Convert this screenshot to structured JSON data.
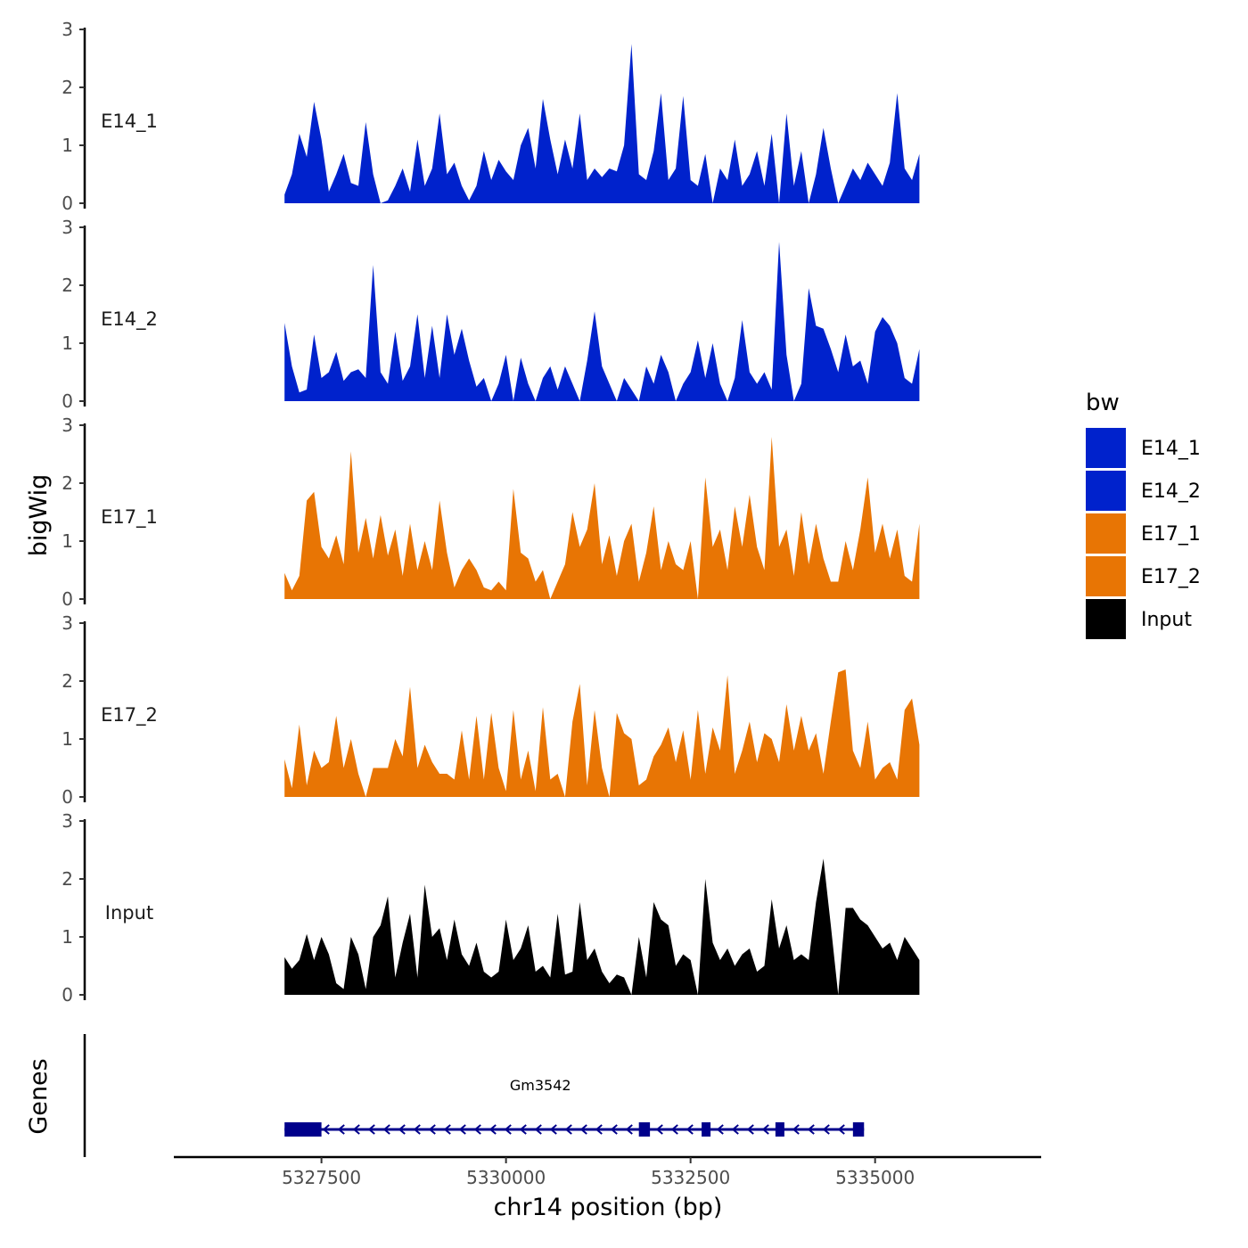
{
  "chart_data": {
    "type": "area",
    "chromosome": "chr14",
    "xlabel": "chr14 position (bp)",
    "ylabel": "bigWig",
    "genes_label": "Genes",
    "x_range": [
      5327000,
      5335600
    ],
    "plot_xlim": [
      5325500,
      5337250
    ],
    "x_ticks": [
      5327500,
      5330000,
      5332500,
      5335000
    ],
    "x_tick_labels": [
      "5327500",
      "5330000",
      "5332500",
      "5335000"
    ],
    "ylim": [
      0,
      3
    ],
    "y_ticks": [
      0,
      1,
      2,
      3
    ],
    "y_tick_labels": [
      "0",
      "1",
      "2",
      "3"
    ],
    "legend": {
      "title": "bw",
      "entries": [
        {
          "label": "E14_1",
          "color": "#0022cc"
        },
        {
          "label": "E14_2",
          "color": "#0022cc"
        },
        {
          "label": "E17_1",
          "color": "#e87504"
        },
        {
          "label": "E17_2",
          "color": "#e87504"
        },
        {
          "label": "Input",
          "color": "#000000"
        }
      ]
    },
    "series": [
      {
        "name": "E14_1",
        "color": "#0022cc",
        "x": [
          5327000,
          5327100,
          5327200,
          5327300,
          5327400,
          5327500,
          5327600,
          5327700,
          5327800,
          5327900,
          5328000,
          5328100,
          5328200,
          5328300,
          5328400,
          5328500,
          5328600,
          5328700,
          5328800,
          5328900,
          5329000,
          5329100,
          5329200,
          5329300,
          5329400,
          5329500,
          5329600,
          5329700,
          5329800,
          5329900,
          5330000,
          5330100,
          5330200,
          5330300,
          5330400,
          5330500,
          5330600,
          5330700,
          5330800,
          5330900,
          5331000,
          5331100,
          5331200,
          5331300,
          5331400,
          5331500,
          5331600,
          5331700,
          5331800,
          5331900,
          5332000,
          5332100,
          5332200,
          5332300,
          5332400,
          5332500,
          5332600,
          5332700,
          5332800,
          5332900,
          5333000,
          5333100,
          5333200,
          5333300,
          5333400,
          5333500,
          5333600,
          5333700,
          5333800,
          5333900,
          5334000,
          5334100,
          5334200,
          5334300,
          5334400,
          5334500,
          5334600,
          5334700,
          5334800,
          5334900,
          5335000,
          5335100,
          5335200,
          5335300,
          5335400,
          5335500,
          5335600
        ],
        "values": [
          0.15,
          0.5,
          1.2,
          0.8,
          1.75,
          1.1,
          0.2,
          0.5,
          0.85,
          0.35,
          0.3,
          1.4,
          0.5,
          0.0,
          0.05,
          0.3,
          0.6,
          0.2,
          1.1,
          0.3,
          0.6,
          1.55,
          0.5,
          0.7,
          0.3,
          0.05,
          0.3,
          0.9,
          0.4,
          0.75,
          0.55,
          0.4,
          1.0,
          1.3,
          0.6,
          1.8,
          1.1,
          0.5,
          1.1,
          0.6,
          1.55,
          0.4,
          0.6,
          0.45,
          0.6,
          0.55,
          1.0,
          2.75,
          0.5,
          0.4,
          0.9,
          1.9,
          0.4,
          0.6,
          1.85,
          0.4,
          0.3,
          0.85,
          0.0,
          0.6,
          0.4,
          1.1,
          0.3,
          0.5,
          0.9,
          0.3,
          1.2,
          0.0,
          1.55,
          0.3,
          0.9,
          0.0,
          0.5,
          1.3,
          0.6,
          0.0,
          0.3,
          0.6,
          0.4,
          0.7,
          0.5,
          0.3,
          0.7,
          1.9,
          0.6,
          0.4,
          0.85
        ]
      },
      {
        "name": "E14_2",
        "color": "#0022cc",
        "x": [
          5327000,
          5327100,
          5327200,
          5327300,
          5327400,
          5327500,
          5327600,
          5327700,
          5327800,
          5327900,
          5328000,
          5328100,
          5328200,
          5328300,
          5328400,
          5328500,
          5328600,
          5328700,
          5328800,
          5328900,
          5329000,
          5329100,
          5329200,
          5329300,
          5329400,
          5329500,
          5329600,
          5329700,
          5329800,
          5329900,
          5330000,
          5330100,
          5330200,
          5330300,
          5330400,
          5330500,
          5330600,
          5330700,
          5330800,
          5330900,
          5331000,
          5331100,
          5331200,
          5331300,
          5331400,
          5331500,
          5331600,
          5331700,
          5331800,
          5331900,
          5332000,
          5332100,
          5332200,
          5332300,
          5332400,
          5332500,
          5332600,
          5332700,
          5332800,
          5332900,
          5333000,
          5333100,
          5333200,
          5333300,
          5333400,
          5333500,
          5333600,
          5333700,
          5333800,
          5333900,
          5334000,
          5334100,
          5334200,
          5334300,
          5334400,
          5334500,
          5334600,
          5334700,
          5334800,
          5334900,
          5335000,
          5335100,
          5335200,
          5335300,
          5335400,
          5335500,
          5335600
        ],
        "values": [
          1.35,
          0.6,
          0.15,
          0.2,
          1.15,
          0.4,
          0.5,
          0.85,
          0.35,
          0.5,
          0.55,
          0.4,
          2.35,
          0.5,
          0.3,
          1.2,
          0.35,
          0.6,
          1.5,
          0.4,
          1.3,
          0.4,
          1.5,
          0.8,
          1.25,
          0.7,
          0.25,
          0.4,
          0.0,
          0.3,
          0.8,
          0.0,
          0.75,
          0.3,
          0.0,
          0.4,
          0.6,
          0.2,
          0.6,
          0.3,
          0.0,
          0.7,
          1.55,
          0.6,
          0.3,
          0.0,
          0.4,
          0.2,
          0.0,
          0.6,
          0.3,
          0.8,
          0.5,
          0.0,
          0.3,
          0.5,
          1.05,
          0.4,
          1.0,
          0.3,
          0.0,
          0.4,
          1.4,
          0.5,
          0.3,
          0.5,
          0.2,
          2.75,
          0.8,
          0.0,
          0.3,
          1.95,
          1.3,
          1.25,
          0.9,
          0.5,
          1.15,
          0.6,
          0.7,
          0.3,
          1.2,
          1.45,
          1.3,
          1.0,
          0.4,
          0.3,
          0.9
        ]
      },
      {
        "name": "E17_1",
        "color": "#e87504",
        "x": [
          5327000,
          5327100,
          5327200,
          5327300,
          5327400,
          5327500,
          5327600,
          5327700,
          5327800,
          5327900,
          5328000,
          5328100,
          5328200,
          5328300,
          5328400,
          5328500,
          5328600,
          5328700,
          5328800,
          5328900,
          5329000,
          5329100,
          5329200,
          5329300,
          5329400,
          5329500,
          5329600,
          5329700,
          5329800,
          5329900,
          5330000,
          5330100,
          5330200,
          5330300,
          5330400,
          5330500,
          5330600,
          5330700,
          5330800,
          5330900,
          5331000,
          5331100,
          5331200,
          5331300,
          5331400,
          5331500,
          5331600,
          5331700,
          5331800,
          5331900,
          5332000,
          5332100,
          5332200,
          5332300,
          5332400,
          5332500,
          5332600,
          5332700,
          5332800,
          5332900,
          5333000,
          5333100,
          5333200,
          5333300,
          5333400,
          5333500,
          5333600,
          5333700,
          5333800,
          5333900,
          5334000,
          5334100,
          5334200,
          5334300,
          5334400,
          5334500,
          5334600,
          5334700,
          5334800,
          5334900,
          5335000,
          5335100,
          5335200,
          5335300,
          5335400,
          5335500,
          5335600
        ],
        "values": [
          0.45,
          0.15,
          0.4,
          1.7,
          1.85,
          0.9,
          0.7,
          1.1,
          0.6,
          2.55,
          0.8,
          1.4,
          0.7,
          1.45,
          0.75,
          1.2,
          0.4,
          1.3,
          0.5,
          1.0,
          0.5,
          1.7,
          0.8,
          0.2,
          0.5,
          0.7,
          0.5,
          0.2,
          0.15,
          0.3,
          0.15,
          1.9,
          0.8,
          0.7,
          0.3,
          0.5,
          0.0,
          0.3,
          0.6,
          1.5,
          0.9,
          1.2,
          2.0,
          0.6,
          1.1,
          0.4,
          1.0,
          1.3,
          0.3,
          0.8,
          1.6,
          0.5,
          1.0,
          0.6,
          0.5,
          1.0,
          0.0,
          2.1,
          0.9,
          1.2,
          0.5,
          1.6,
          0.9,
          1.8,
          0.9,
          0.5,
          2.8,
          0.9,
          1.2,
          0.4,
          1.5,
          0.6,
          1.3,
          0.7,
          0.3,
          0.3,
          1.0,
          0.5,
          1.2,
          2.1,
          0.8,
          1.3,
          0.7,
          1.2,
          0.4,
          0.3,
          1.3
        ]
      },
      {
        "name": "E17_2",
        "color": "#e87504",
        "x": [
          5327000,
          5327100,
          5327200,
          5327300,
          5327400,
          5327500,
          5327600,
          5327700,
          5327800,
          5327900,
          5328000,
          5328100,
          5328200,
          5328300,
          5328400,
          5328500,
          5328600,
          5328700,
          5328800,
          5328900,
          5329000,
          5329100,
          5329200,
          5329300,
          5329400,
          5329500,
          5329600,
          5329700,
          5329800,
          5329900,
          5330000,
          5330100,
          5330200,
          5330300,
          5330400,
          5330500,
          5330600,
          5330700,
          5330800,
          5330900,
          5331000,
          5331100,
          5331200,
          5331300,
          5331400,
          5331500,
          5331600,
          5331700,
          5331800,
          5331900,
          5332000,
          5332100,
          5332200,
          5332300,
          5332400,
          5332500,
          5332600,
          5332700,
          5332800,
          5332900,
          5333000,
          5333100,
          5333200,
          5333300,
          5333400,
          5333500,
          5333600,
          5333700,
          5333800,
          5333900,
          5334000,
          5334100,
          5334200,
          5334300,
          5334400,
          5334500,
          5334600,
          5334700,
          5334800,
          5334900,
          5335000,
          5335100,
          5335200,
          5335300,
          5335400,
          5335500,
          5335600
        ],
        "values": [
          0.65,
          0.15,
          1.25,
          0.2,
          0.8,
          0.5,
          0.6,
          1.4,
          0.5,
          1.0,
          0.4,
          0.0,
          0.5,
          0.5,
          0.5,
          1.0,
          0.7,
          1.9,
          0.5,
          0.9,
          0.6,
          0.4,
          0.4,
          0.3,
          1.15,
          0.3,
          1.4,
          0.3,
          1.45,
          0.5,
          0.1,
          1.5,
          0.3,
          0.8,
          0.1,
          1.55,
          0.3,
          0.4,
          0.0,
          1.3,
          1.95,
          0.2,
          1.5,
          0.5,
          0.0,
          1.45,
          1.1,
          1.0,
          0.2,
          0.3,
          0.7,
          0.9,
          1.2,
          0.6,
          1.15,
          0.3,
          1.5,
          0.4,
          1.2,
          0.8,
          2.1,
          0.4,
          0.8,
          1.3,
          0.6,
          1.1,
          1.0,
          0.6,
          1.6,
          0.8,
          1.4,
          0.8,
          1.1,
          0.4,
          1.3,
          2.15,
          2.2,
          0.8,
          0.5,
          1.3,
          0.3,
          0.5,
          0.6,
          0.3,
          1.5,
          1.7,
          0.9
        ]
      },
      {
        "name": "Input",
        "color": "#000000",
        "x": [
          5327000,
          5327100,
          5327200,
          5327300,
          5327400,
          5327500,
          5327600,
          5327700,
          5327800,
          5327900,
          5328000,
          5328100,
          5328200,
          5328300,
          5328400,
          5328500,
          5328600,
          5328700,
          5328800,
          5328900,
          5329000,
          5329100,
          5329200,
          5329300,
          5329400,
          5329500,
          5329600,
          5329700,
          5329800,
          5329900,
          5330000,
          5330100,
          5330200,
          5330300,
          5330400,
          5330500,
          5330600,
          5330700,
          5330800,
          5330900,
          5331000,
          5331100,
          5331200,
          5331300,
          5331400,
          5331500,
          5331600,
          5331700,
          5331800,
          5331900,
          5332000,
          5332100,
          5332200,
          5332300,
          5332400,
          5332500,
          5332600,
          5332700,
          5332800,
          5332900,
          5333000,
          5333100,
          5333200,
          5333300,
          5333400,
          5333500,
          5333600,
          5333700,
          5333800,
          5333900,
          5334000,
          5334100,
          5334200,
          5334300,
          5334400,
          5334500,
          5334600,
          5334700,
          5334800,
          5334900,
          5335000,
          5335100,
          5335200,
          5335300,
          5335400,
          5335500,
          5335600
        ],
        "values": [
          0.65,
          0.45,
          0.6,
          1.05,
          0.6,
          1.0,
          0.7,
          0.2,
          0.1,
          1.0,
          0.7,
          0.1,
          1.0,
          1.2,
          1.7,
          0.3,
          0.9,
          1.4,
          0.3,
          1.9,
          1.0,
          1.15,
          0.6,
          1.3,
          0.7,
          0.5,
          0.9,
          0.4,
          0.3,
          0.4,
          1.3,
          0.6,
          0.8,
          1.2,
          0.4,
          0.5,
          0.3,
          1.4,
          0.35,
          0.4,
          1.6,
          0.6,
          0.8,
          0.4,
          0.2,
          0.35,
          0.3,
          0.0,
          1.0,
          0.3,
          1.6,
          1.3,
          1.2,
          0.5,
          0.7,
          0.6,
          0.0,
          2.0,
          0.9,
          0.6,
          0.8,
          0.5,
          0.7,
          0.8,
          0.4,
          0.5,
          1.65,
          0.8,
          1.2,
          0.6,
          0.7,
          0.6,
          1.6,
          2.35,
          1.2,
          0.0,
          1.5,
          1.5,
          1.3,
          1.2,
          1.0,
          0.8,
          0.9,
          0.6,
          1.0,
          0.8,
          0.6
        ]
      }
    ],
    "genes": [
      {
        "name": "Gm3542",
        "start": 5327000,
        "end": 5334850,
        "strand": "-",
        "color": "#00008b",
        "exons": [
          [
            5327000,
            5327500
          ],
          [
            5331800,
            5331950
          ],
          [
            5332650,
            5332750
          ],
          [
            5333650,
            5333750
          ],
          [
            5334700,
            5334850
          ]
        ],
        "utrs": [
          [
            5327000,
            5327500
          ]
        ]
      }
    ]
  }
}
